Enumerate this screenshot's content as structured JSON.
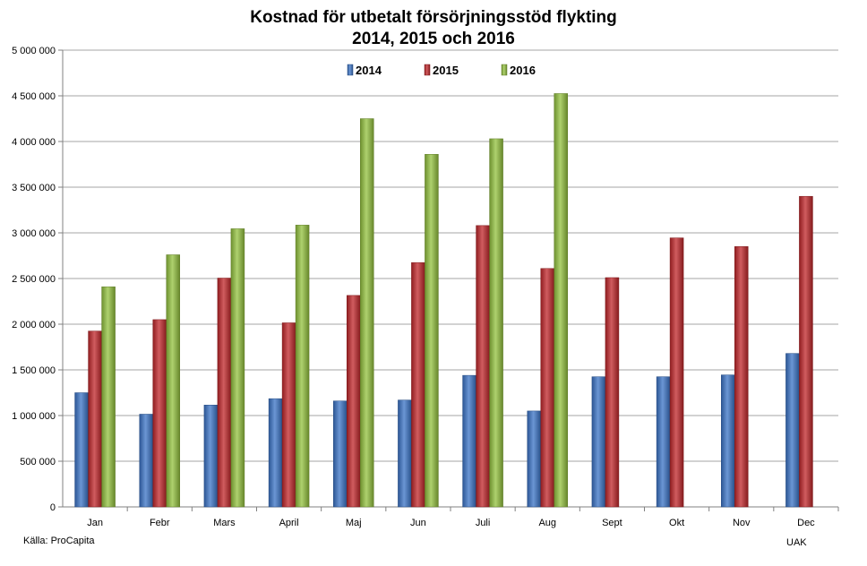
{
  "chart_data": {
    "type": "bar",
    "title": "Kostnad för utbetalt försörjningsstöd flykting",
    "subtitle": "2014, 2015 och 2016",
    "categories": [
      "Jan",
      "Febr",
      "Mars",
      "April",
      "Maj",
      "Jun",
      "Juli",
      "Aug",
      "Sept",
      "Okt",
      "Nov",
      "Dec"
    ],
    "series": [
      {
        "name": "2014",
        "color": "#3a73c6",
        "values": [
          1250000,
          1015000,
          1115000,
          1185000,
          1160000,
          1170000,
          1440000,
          1050000,
          1425000,
          1425000,
          1445000,
          1680000
        ]
      },
      {
        "name": "2015",
        "color": "#c0262a",
        "values": [
          1925000,
          2050000,
          2505000,
          2015000,
          2315000,
          2675000,
          3080000,
          2610000,
          2510000,
          2945000,
          2850000,
          3400000
        ]
      },
      {
        "name": "2016",
        "color": "#93c13e",
        "values": [
          2410000,
          2760000,
          3045000,
          3085000,
          4250000,
          3860000,
          4030000,
          4525000,
          null,
          null,
          null,
          null
        ]
      }
    ],
    "yticks": [
      "0",
      "500 000",
      "1 000 000",
      "1 500 000",
      "2 000 000",
      "2 500 000",
      "3 000 000",
      "3 500 000",
      "4 000 000",
      "4 500 000",
      "5 000 000"
    ],
    "ylim": [
      0,
      5000000
    ],
    "grid": true,
    "legend_position": "top-center"
  },
  "footer": {
    "source": "Källa: ProCapita",
    "credit": "UAK"
  }
}
